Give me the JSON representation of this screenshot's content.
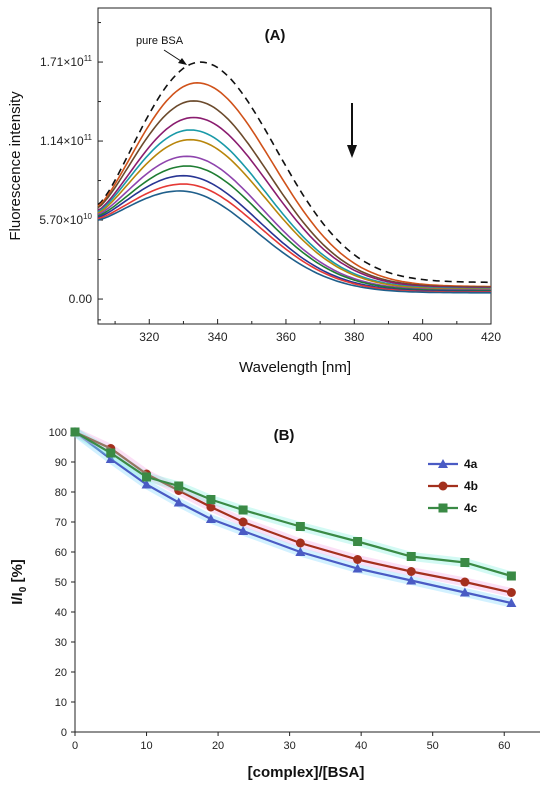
{
  "chart_data": [
    {
      "type": "line",
      "title": "(A)",
      "xlabel": "Wavelength [nm]",
      "ylabel": "Fluorescence intensity",
      "xlim": [
        305,
        420
      ],
      "ylim": [
        -18000000000.0,
        210000000000.0
      ],
      "xticks": [
        "320",
        "340",
        "360",
        "380",
        "400",
        "420"
      ],
      "yticks": [
        "0.00",
        "5.70×10^10",
        "1.14×10^11",
        "1.71×10^11"
      ],
      "annotation": "pure BSA",
      "series": [
        {
          "name": "pure BSA",
          "color": "#111111",
          "dashed": true,
          "peak_x": 335,
          "peak_y": 171000000000.0,
          "start_y": 68000000000.0,
          "end_y": 12000000000.0
        },
        {
          "color": "#d0521a",
          "peak_x": 334,
          "peak_y": 156000000000.0,
          "start_y": 67000000000.0,
          "end_y": 9000000000.0
        },
        {
          "color": "#6b4a2c",
          "peak_x": 333,
          "peak_y": 143000000000.0,
          "start_y": 66000000000.0,
          "end_y": 8500000000.0
        },
        {
          "color": "#8a1c6f",
          "peak_x": 333,
          "peak_y": 131000000000.0,
          "start_y": 64000000000.0,
          "end_y": 8000000000.0
        },
        {
          "color": "#1a9aa8",
          "peak_x": 332,
          "peak_y": 122000000000.0,
          "start_y": 63000000000.0,
          "end_y": 7500000000.0
        },
        {
          "color": "#b8860b",
          "peak_x": 332,
          "peak_y": 115000000000.0,
          "start_y": 62000000000.0,
          "end_y": 7000000000.0
        },
        {
          "color": "#8e44ad",
          "peak_x": 331,
          "peak_y": 103000000000.0,
          "start_y": 61000000000.0,
          "end_y": 6500000000.0
        },
        {
          "color": "#1e7d32",
          "peak_x": 331,
          "peak_y": 96000000000.0,
          "start_y": 60000000000.0,
          "end_y": 6000000000.0
        },
        {
          "color": "#283593",
          "peak_x": 330,
          "peak_y": 89000000000.0,
          "start_y": 59000000000.0,
          "end_y": 5500000000.0
        },
        {
          "color": "#e53935",
          "peak_x": 330,
          "peak_y": 83000000000.0,
          "start_y": 58000000000.0,
          "end_y": 5000000000.0
        },
        {
          "color": "#1f5f8b",
          "peak_x": 329,
          "peak_y": 78000000000.0,
          "start_y": 57000000000.0,
          "end_y": 4500000000.0
        }
      ]
    },
    {
      "type": "line",
      "title": "(B)",
      "xlabel": "[complex]/[BSA]",
      "ylabel": "I/I0 [%]",
      "xlim": [
        0,
        65
      ],
      "ylim": [
        0,
        100
      ],
      "xticks": [
        0,
        10,
        20,
        30,
        40,
        50,
        60
      ],
      "yticks": [
        0,
        10,
        20,
        30,
        40,
        50,
        60,
        70,
        80,
        90,
        100
      ],
      "legend": "top-right",
      "series": [
        {
          "name": "4a",
          "color": "#4a5bc4",
          "marker": "triangle",
          "x": [
            0,
            5,
            10,
            14.5,
            19,
            23.5,
            31.5,
            39.5,
            47,
            54.5,
            61
          ],
          "y": [
            100,
            91,
            82.5,
            76.5,
            71,
            67,
            60,
            54.5,
            50.5,
            46.5,
            43
          ]
        },
        {
          "name": "4b",
          "color": "#a3301d",
          "marker": "circle",
          "x": [
            0,
            5,
            10,
            14.5,
            19,
            23.5,
            31.5,
            39.5,
            47,
            54.5,
            61
          ],
          "y": [
            100,
            94.5,
            86,
            80.5,
            75,
            70,
            63,
            57.5,
            53.5,
            50,
            46.5
          ]
        },
        {
          "name": "4c",
          "color": "#3a8a45",
          "marker": "square",
          "x": [
            0,
            5,
            10,
            14.5,
            19,
            23.5,
            31.5,
            39.5,
            47,
            54.5,
            61
          ],
          "y": [
            100,
            93,
            85,
            82,
            77.5,
            74,
            68.5,
            63.5,
            58.5,
            56.5,
            52
          ]
        }
      ]
    }
  ]
}
